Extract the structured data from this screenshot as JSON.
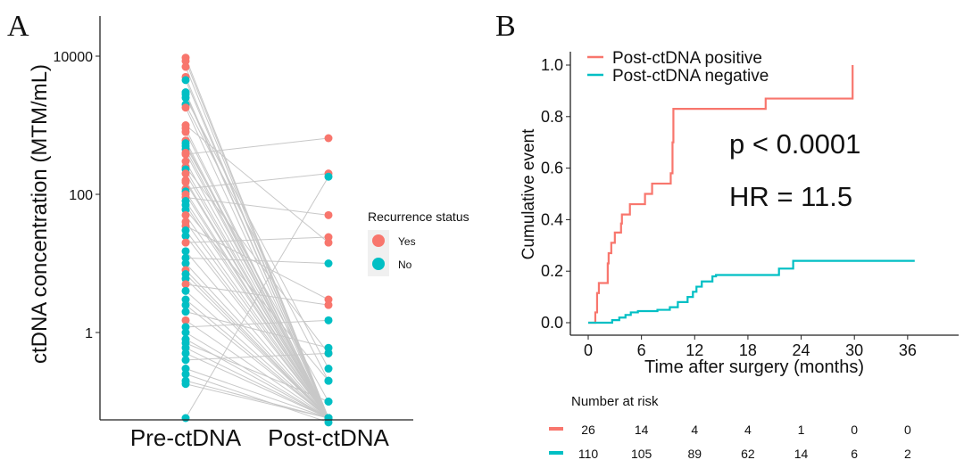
{
  "colors": {
    "yes": "#F8766D",
    "no": "#00BFC4",
    "positive": "#F8766D",
    "negative": "#00BFC4",
    "lines": "#c8c8c8"
  },
  "chart_data": [
    {
      "panel_label": "A",
      "type": "scatter",
      "subtype": "paired dot plot with connecting lines",
      "ylabel": "ctDNA concentration (MTM/mL)",
      "yscale": "log",
      "yticks": [
        {
          "value": 1,
          "label": "1"
        },
        {
          "value": 100,
          "label": "100"
        },
        {
          "value": 10000,
          "label": "10000"
        }
      ],
      "categories": [
        "Pre-ctDNA",
        "Post-ctDNA"
      ],
      "legend": {
        "title": "Recurrence status",
        "entries": [
          "Yes",
          "No"
        ],
        "placement": "right"
      },
      "grid": false,
      "pairs": [
        [
          9500,
          0,
          "Yes"
        ],
        [
          8500,
          0,
          "Yes"
        ],
        [
          7000,
          0,
          "Yes"
        ],
        [
          5000,
          0,
          "Yes"
        ],
        [
          4500,
          0,
          "No"
        ],
        [
          3000,
          0,
          "No"
        ],
        [
          2800,
          0,
          "No"
        ],
        [
          2500,
          0.3,
          "No"
        ],
        [
          2000,
          0.2,
          "No"
        ],
        [
          1800,
          0,
          "Yes"
        ],
        [
          1000,
          20,
          "Yes"
        ],
        [
          900,
          0,
          "Yes"
        ],
        [
          800,
          0,
          "Yes"
        ],
        [
          600,
          0,
          "Yes"
        ],
        [
          550,
          0,
          "No"
        ],
        [
          500,
          0.1,
          "No"
        ],
        [
          450,
          0,
          "No"
        ],
        [
          400,
          0,
          "Yes"
        ],
        [
          380,
          650,
          "Yes"
        ],
        [
          300,
          0,
          "Yes"
        ],
        [
          250,
          0.5,
          "Yes"
        ],
        [
          230,
          0,
          "No"
        ],
        [
          200,
          0,
          "Yes"
        ],
        [
          160,
          0,
          "Yes"
        ],
        [
          150,
          0,
          "Yes"
        ],
        [
          120,
          200,
          "Yes"
        ],
        [
          110,
          0,
          "No"
        ],
        [
          100,
          0,
          "Yes"
        ],
        [
          90,
          50,
          "Yes"
        ],
        [
          80,
          0,
          "No"
        ],
        [
          70,
          0,
          "No"
        ],
        [
          60,
          0.2,
          "No"
        ],
        [
          50,
          0,
          "Yes"
        ],
        [
          40,
          0,
          "Yes"
        ],
        [
          35,
          3,
          "Yes"
        ],
        [
          30,
          0,
          "No"
        ],
        [
          25,
          0,
          "No"
        ],
        [
          20,
          24,
          "Yes"
        ],
        [
          15,
          0,
          "No"
        ],
        [
          12,
          10,
          "No"
        ],
        [
          10,
          0,
          "No"
        ],
        [
          8,
          0,
          "Yes"
        ],
        [
          7,
          0,
          "No"
        ],
        [
          6,
          0,
          "No"
        ],
        [
          5,
          2.5,
          "Yes"
        ],
        [
          4,
          0,
          "No"
        ],
        [
          3,
          0,
          "No"
        ],
        [
          2.5,
          0,
          "No"
        ],
        [
          2,
          0.6,
          "No"
        ],
        [
          1.5,
          0,
          "Yes"
        ],
        [
          1.2,
          1.5,
          "No"
        ],
        [
          1,
          0,
          "No"
        ],
        [
          0.8,
          0,
          "No"
        ],
        [
          0.7,
          0.1,
          "No"
        ],
        [
          0.6,
          0,
          "No"
        ],
        [
          0.5,
          0,
          "No"
        ],
        [
          0.4,
          0.5,
          "No"
        ],
        [
          0.3,
          0,
          "No"
        ],
        [
          0.25,
          0.05,
          "No"
        ],
        [
          0.2,
          0,
          "No"
        ],
        [
          0.18,
          0,
          "No"
        ],
        [
          0,
          180,
          "No"
        ]
      ]
    },
    {
      "panel_label": "B",
      "type": "line",
      "subtype": "step (cumulative incidence)",
      "xlabel": "Time after surgery (months)",
      "ylabel": "Cumulative event",
      "xlim": [
        0,
        36
      ],
      "ylim": [
        0,
        1
      ],
      "xticks": [
        0,
        6,
        12,
        18,
        24,
        30,
        36
      ],
      "yticks": [
        "0.0",
        "0.2",
        "0.4",
        "0.6",
        "0.8",
        "1.0"
      ],
      "legend_placement": "top-left",
      "grid": false,
      "annotations": [
        "p < 0.0001",
        "HR = 11.5"
      ],
      "series": [
        {
          "name": "Post-ctDNA positive",
          "x": [
            0,
            0.8,
            1.0,
            1.2,
            2.2,
            2.3,
            2.6,
            3.0,
            3.7,
            3.8,
            4.7,
            6.4,
            7.2,
            9.3,
            9.5,
            9.6,
            20.0,
            29.8
          ],
          "y": [
            0,
            0.04,
            0.115,
            0.154,
            0.23,
            0.27,
            0.31,
            0.35,
            0.385,
            0.42,
            0.46,
            0.5,
            0.54,
            0.58,
            0.7,
            0.83,
            0.87,
            1.0
          ],
          "end": 29.8
        },
        {
          "name": "Post-ctDNA negative",
          "x": [
            0,
            2.7,
            3.5,
            4.2,
            4.8,
            5.6,
            7.8,
            9.2,
            10.1,
            11.2,
            11.8,
            12.2,
            12.8,
            14.0,
            14.4,
            21.5,
            23.1
          ],
          "y": [
            0,
            0.01,
            0.02,
            0.03,
            0.04,
            0.045,
            0.05,
            0.06,
            0.08,
            0.1,
            0.12,
            0.14,
            0.16,
            0.18,
            0.185,
            0.21,
            0.24
          ],
          "end": 36.8
        }
      ],
      "risk_table": {
        "title": "Number at risk",
        "rows": [
          {
            "series": "Post-ctDNA positive",
            "values": [
              "26",
              "14",
              "4",
              "4",
              "1",
              "0",
              "0"
            ]
          },
          {
            "series": "Post-ctDNA negative",
            "values": [
              "110",
              "105",
              "89",
              "62",
              "14",
              "6",
              "2"
            ]
          }
        ]
      }
    }
  ]
}
